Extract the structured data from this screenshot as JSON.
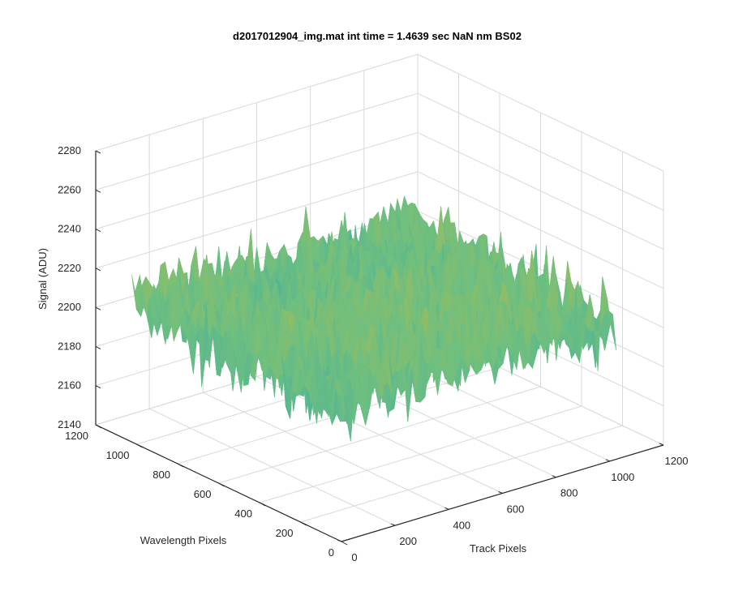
{
  "chart_data": {
    "type": "surface",
    "title": "d2017012904_img.mat int time = 1.4639 sec  NaN nm BS02",
    "xlabel": "Track Pixels",
    "ylabel": "Wavelength Pixels",
    "zlabel": "Signal (ADU)",
    "xlim": [
      0,
      1200
    ],
    "ylim": [
      0,
      1200
    ],
    "zlim": [
      2140,
      2280
    ],
    "x_ticks": [
      "0",
      "200",
      "400",
      "600",
      "800",
      "1000",
      "1200"
    ],
    "y_ticks": [
      "0",
      "200",
      "400",
      "600",
      "800",
      "1000",
      "1200"
    ],
    "z_ticks": [
      "2140",
      "2160",
      "2180",
      "2200",
      "2220",
      "2240",
      "2260",
      "2280"
    ],
    "grid": true,
    "colormap": "parula",
    "surface": {
      "x_extent": [
        0,
        1024
      ],
      "y_extent": [
        0,
        1024
      ],
      "mean_signal": 2210,
      "min_signal_approx": 2160,
      "max_signal_approx": 2265
    },
    "colors": {
      "low": "#0a9ac8",
      "mid": "#6fbf7f",
      "high": "#e5b928",
      "grid": "#d9d9d9",
      "axis": "#262626"
    }
  }
}
